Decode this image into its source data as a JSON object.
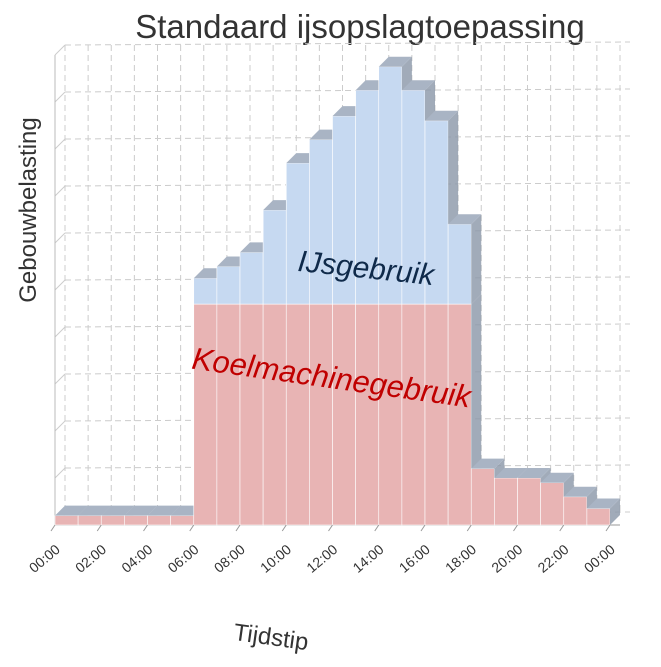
{
  "chart_data": {
    "type": "stacked_bar",
    "title": "Standaard ijsopslagtoepassing",
    "x_label": "Tijdstip",
    "y_label": "Gebouwbelasting",
    "x_edge_labels": [
      "00:00",
      "02:00",
      "04:00",
      "06:00",
      "08:00",
      "10:00",
      "12:00",
      "14:00",
      "16:00",
      "18:00",
      "20:00",
      "22:00",
      "00:00"
    ],
    "series": [
      {
        "name": "Koelmachinegebruik",
        "color": "#e8b4b4",
        "label_color": "#c00000",
        "values": [
          0.2,
          0.2,
          0.2,
          0.2,
          0.2,
          0.2,
          4.7,
          4.7,
          4.7,
          4.7,
          4.7,
          4.7,
          4.7,
          4.7,
          4.7,
          4.7,
          4.7,
          4.7,
          1.2,
          1.0,
          1.0,
          0.9,
          0.6,
          0.35
        ]
      },
      {
        "name": "IJsgebruik",
        "color": "#c6d9f1",
        "label_color": "#0f2a4a",
        "values": [
          0,
          0,
          0,
          0,
          0,
          0,
          0.55,
          0.8,
          1.1,
          2.0,
          3.0,
          3.5,
          4.0,
          4.55,
          5.05,
          4.55,
          3.9,
          1.7,
          0,
          0,
          0,
          0,
          0,
          0
        ]
      }
    ],
    "ylim": [
      0,
      10
    ],
    "yticks": [
      0,
      1,
      2,
      3,
      4,
      5,
      6,
      7,
      8,
      9,
      10
    ],
    "grid": true
  }
}
